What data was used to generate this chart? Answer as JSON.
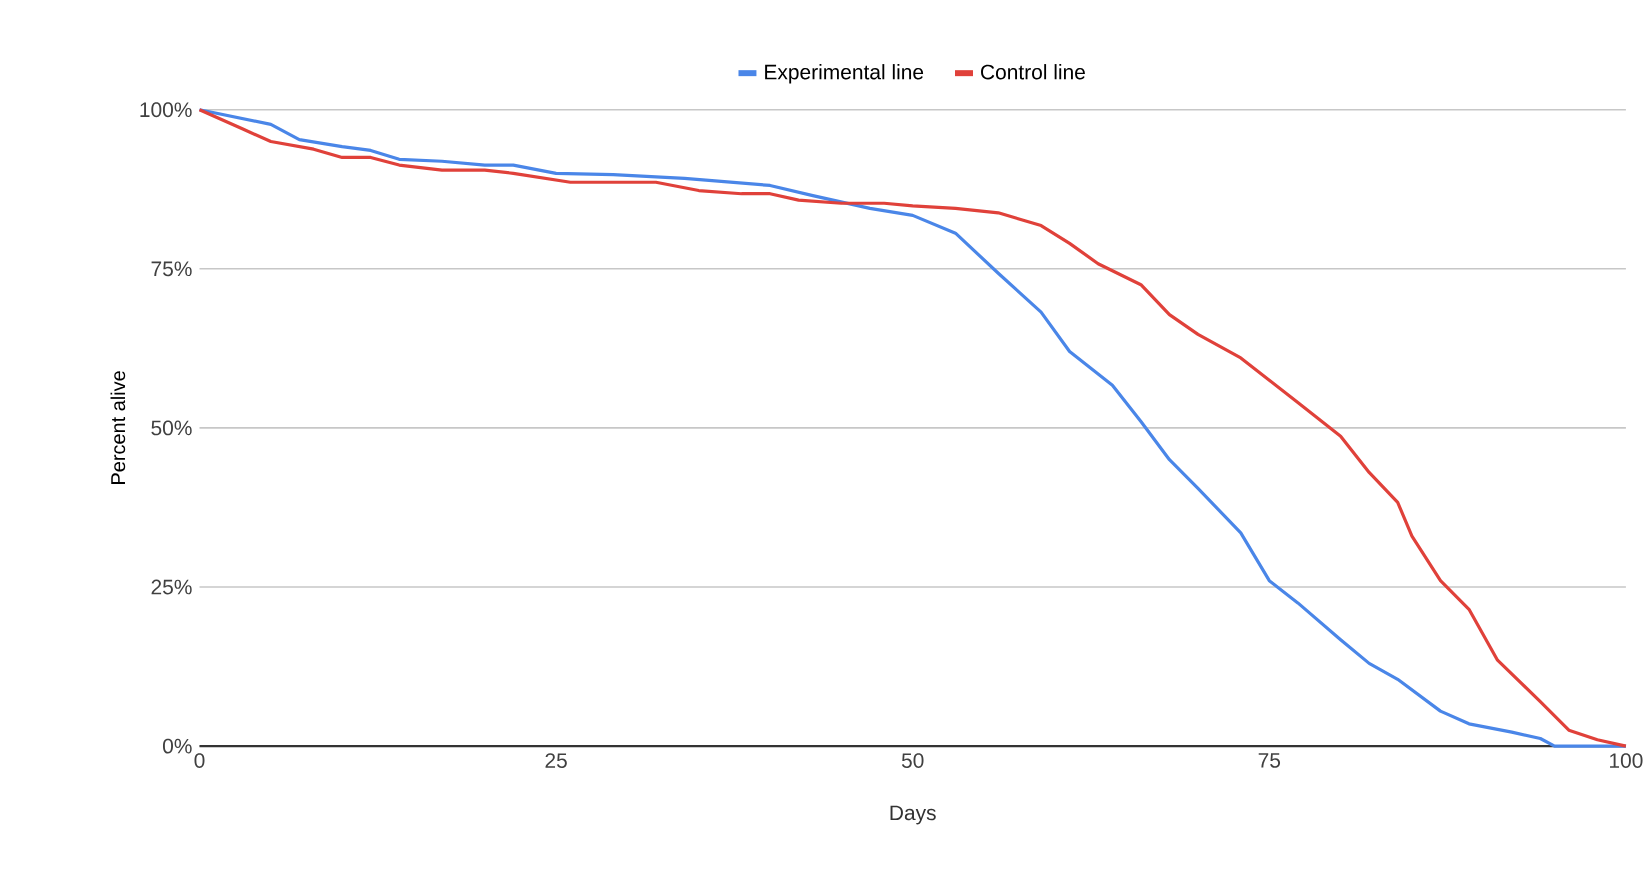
{
  "chart_data": {
    "type": "line",
    "xlabel": "Days",
    "ylabel": "Percent alive",
    "legend": "top",
    "grid": "y",
    "marker": "none",
    "line_style": "solid",
    "xlim": [
      0,
      100
    ],
    "xticks": [
      0,
      25,
      50,
      75,
      100
    ],
    "ylim": [
      0,
      100
    ],
    "yticks": [
      {
        "value": 0,
        "label": "0%"
      },
      {
        "value": 25,
        "label": "25%"
      },
      {
        "value": 50,
        "label": "50%"
      },
      {
        "value": 75,
        "label": "75%"
      },
      {
        "value": 100,
        "label": "100%"
      }
    ],
    "series": [
      {
        "name": "Experimental line",
        "color": "#4a86e8",
        "x": [
          0,
          5,
          7,
          10,
          12,
          14,
          17,
          20,
          22,
          25,
          29,
          34,
          40,
          43,
          47,
          50,
          53,
          56,
          59,
          61,
          64,
          66,
          68,
          70,
          73,
          75,
          77,
          80,
          82,
          84,
          87,
          89,
          92,
          94,
          95,
          100
        ],
        "values": [
          100,
          97.7,
          95.3,
          94.2,
          93.6,
          92.2,
          91.9,
          91.3,
          91.3,
          90,
          89.8,
          89.2,
          88.1,
          86.5,
          84.5,
          83.4,
          80.6,
          74.3,
          68.2,
          62,
          56.7,
          51,
          45,
          40.5,
          33.5,
          26,
          22.5,
          16.7,
          13,
          10.5,
          5.5,
          3.5,
          2.2,
          1.2,
          0,
          0
        ]
      },
      {
        "name": "Control line",
        "color": "#e0413a",
        "x": [
          0,
          3,
          5,
          8,
          10,
          12,
          14,
          17,
          20,
          22,
          26,
          30,
          32,
          35,
          38,
          40,
          42,
          45,
          48,
          50,
          53,
          56,
          59,
          61,
          63,
          66,
          68,
          70,
          73,
          75,
          77,
          80,
          82,
          84,
          85,
          87,
          89,
          91,
          94,
          96,
          98,
          100
        ],
        "values": [
          100,
          97,
          95,
          93.8,
          92.5,
          92.5,
          91.3,
          90.5,
          90.5,
          90,
          88.6,
          88.6,
          88.6,
          87.3,
          86.8,
          86.8,
          85.8,
          85.3,
          85.3,
          84.9,
          84.5,
          83.8,
          81.8,
          79,
          75.8,
          72.5,
          67.8,
          64.7,
          61,
          57.5,
          54,
          48.7,
          43,
          38.3,
          33,
          26,
          21.5,
          13.5,
          7,
          2.5,
          1,
          0
        ]
      }
    ]
  }
}
